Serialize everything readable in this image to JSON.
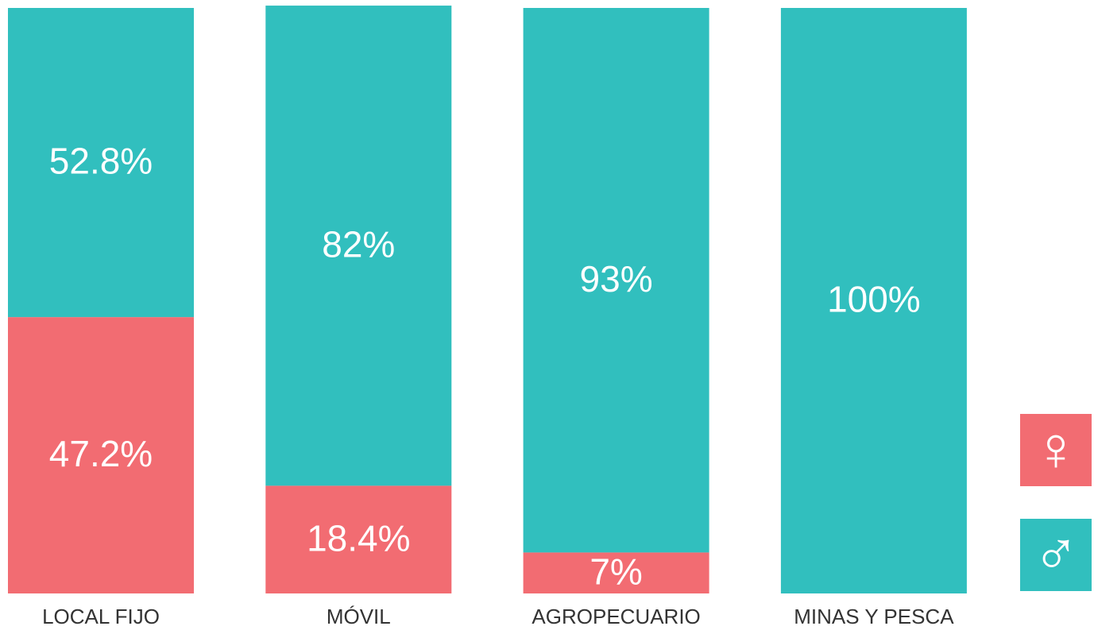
{
  "chart_data": {
    "type": "stacked_bar",
    "categories": [
      "LOCAL FIJO",
      "MÓVIL",
      "AGROPECUARIO",
      "MINAS Y PESCA"
    ],
    "series": [
      {
        "name": "♀",
        "color": "#f26c72",
        "values": [
          47.2,
          18.4,
          7,
          0
        ],
        "value_labels": [
          "47.2%",
          "18.4%",
          "7%",
          null
        ]
      },
      {
        "name": "♂",
        "color": "#31bfbe",
        "values": [
          52.8,
          82,
          93,
          100
        ],
        "value_labels": [
          "52.8%",
          "82%",
          "93%",
          "100%"
        ]
      }
    ],
    "ylim": [
      0,
      100
    ],
    "legend": "bottom-right"
  }
}
